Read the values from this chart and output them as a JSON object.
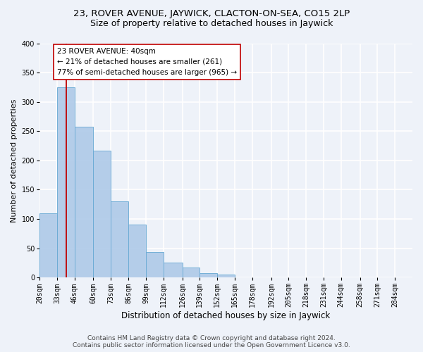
{
  "title": "23, ROVER AVENUE, JAYWICK, CLACTON-ON-SEA, CO15 2LP",
  "subtitle": "Size of property relative to detached houses in Jaywick",
  "xlabel": "Distribution of detached houses by size in Jaywick",
  "ylabel": "Number of detached properties",
  "bin_labels": [
    "20sqm",
    "33sqm",
    "46sqm",
    "60sqm",
    "73sqm",
    "86sqm",
    "99sqm",
    "112sqm",
    "126sqm",
    "139sqm",
    "152sqm",
    "165sqm",
    "178sqm",
    "192sqm",
    "205sqm",
    "218sqm",
    "231sqm",
    "244sqm",
    "258sqm",
    "271sqm",
    "284sqm"
  ],
  "bin_values": [
    110,
    325,
    257,
    217,
    130,
    90,
    43,
    25,
    17,
    8,
    5,
    0,
    0,
    0,
    0,
    0,
    0,
    0,
    0,
    0,
    0
  ],
  "bin_edges": [
    20,
    33,
    46,
    60,
    73,
    86,
    99,
    112,
    126,
    139,
    152,
    165,
    178,
    192,
    205,
    218,
    231,
    244,
    258,
    271,
    284,
    297
  ],
  "property_size": 40,
  "bar_color": "#aec9e8",
  "bar_edge_color": "#6aaad4",
  "vline_color": "#c00000",
  "vline_x": 40,
  "annotation_text": "23 ROVER AVENUE: 40sqm\n← 21% of detached houses are smaller (261)\n77% of semi-detached houses are larger (965) →",
  "annotation_box_color": "white",
  "annotation_box_edge_color": "#c00000",
  "ylim": [
    0,
    400
  ],
  "yticks": [
    0,
    50,
    100,
    150,
    200,
    250,
    300,
    350,
    400
  ],
  "footer_line1": "Contains HM Land Registry data © Crown copyright and database right 2024.",
  "footer_line2": "Contains public sector information licensed under the Open Government Licence v3.0.",
  "bg_color": "#eef2f9",
  "plot_bg_color": "#eef2f9",
  "grid_color": "#ffffff",
  "title_fontsize": 9.5,
  "subtitle_fontsize": 9,
  "xlabel_fontsize": 8.5,
  "ylabel_fontsize": 8,
  "tick_fontsize": 7,
  "annotation_fontsize": 7.5,
  "footer_fontsize": 6.5
}
